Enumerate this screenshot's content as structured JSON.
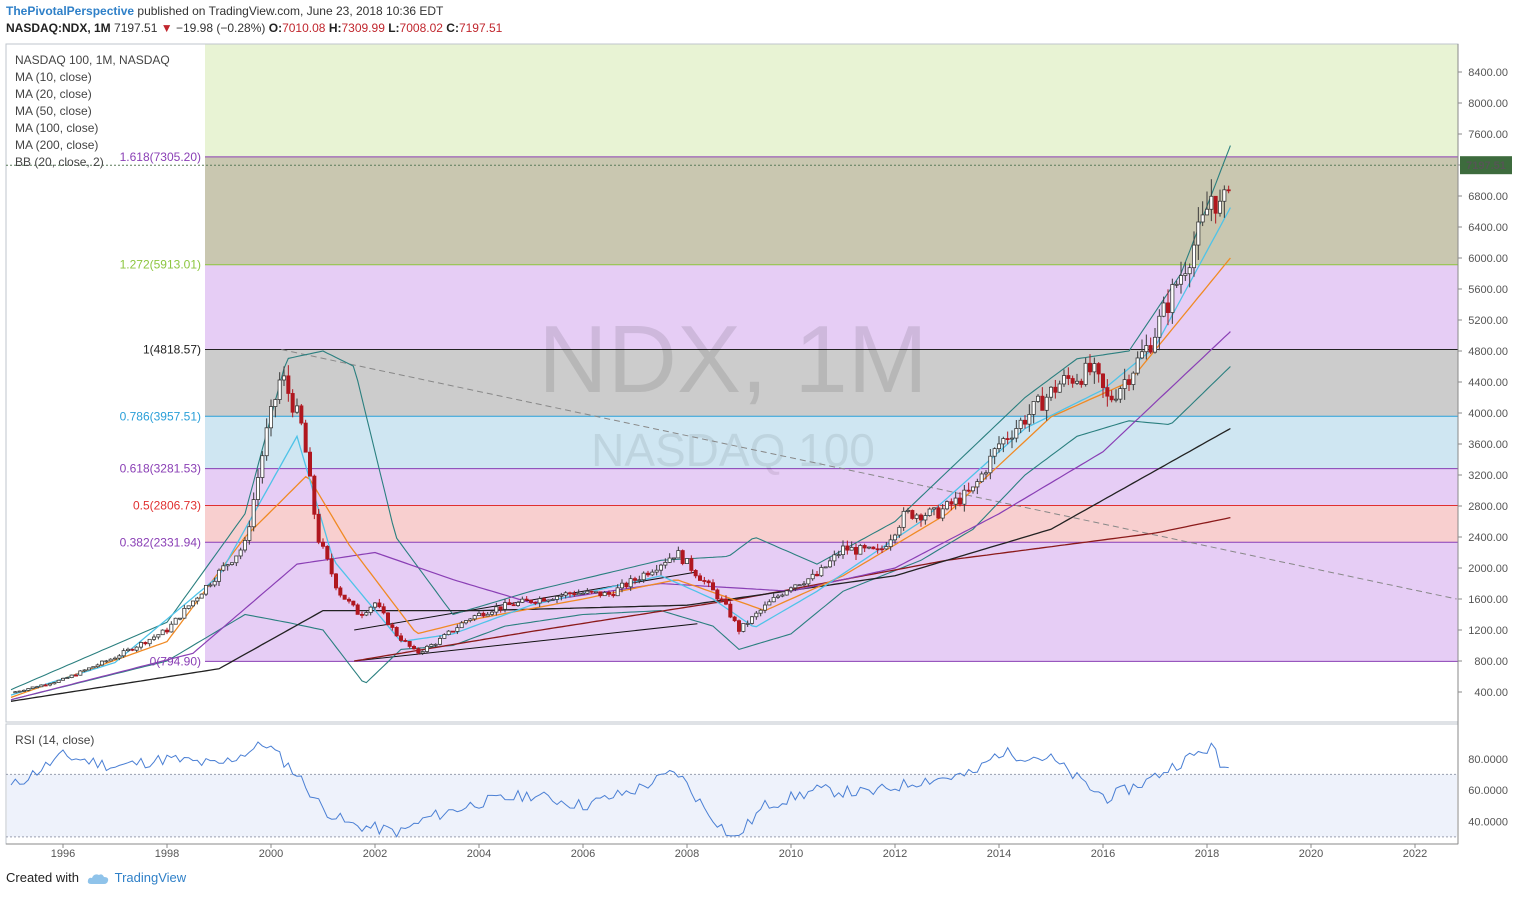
{
  "header": {
    "author": "ThePivotalPerspective",
    "published": "published on TradingView.com, June 23, 2018 10:36 EDT",
    "symbol": "NASDAQ:NDX, 1M",
    "last": "7197.51",
    "arrow": "▼",
    "change": "−19.98 (−0.28%)",
    "o_label": "O:",
    "o_val": "7010.08",
    "h_label": "H:",
    "h_val": "7309.99",
    "l_label": "L:",
    "l_val": "7008.02",
    "c_label": "C:",
    "c_val": "7197.51"
  },
  "legend": {
    "title": "NASDAQ 100, 1M, NASDAQ",
    "items": [
      "MA (10, close)",
      "MA (20, close)",
      "MA (50, close)",
      "MA (100, close)",
      "MA (200, close)",
      "BB (20, close, 2)"
    ]
  },
  "rsi_legend": "RSI (14, close)",
  "watermark": {
    "main": "NDX, 1M",
    "sub": "NASDAQ 100"
  },
  "price_badge": "7197.51",
  "footer": {
    "created_with": "Created with",
    "brand": "TradingView"
  },
  "colors": {
    "ma10": "#4fc3e8",
    "ma20": "#f08a24",
    "ma50": "#8a3fb5",
    "ma100": "#222222",
    "ma200": "#8b1a1a",
    "bb": "#2a7f7f",
    "rsi": "#4a7fd4",
    "up": "#3a3a3a",
    "down": "#b0171f"
  },
  "chart_data": {
    "type": "candlestick",
    "title": "NASDAQ 100, 1M, NASDAQ",
    "x_ticks": [
      "1996",
      "1998",
      "2000",
      "2002",
      "2004",
      "2006",
      "2008",
      "2010",
      "2012",
      "2014",
      "2016",
      "2018",
      "2020",
      "2022"
    ],
    "y_ticks": [
      "400.00",
      "800.00",
      "1200.00",
      "1600.00",
      "2000.00",
      "2400.00",
      "2800.00",
      "3200.00",
      "3600.00",
      "4000.00",
      "4400.00",
      "4800.00",
      "5200.00",
      "5600.00",
      "6000.00",
      "6400.00",
      "6800.00",
      "7200.00",
      "7600.00",
      "8000.00",
      "8400.00"
    ],
    "fib_levels": [
      {
        "label": "1.618(7305.20)",
        "ratio": 1.618,
        "value": 7305.2,
        "color": "#8a3fb5",
        "fill": "#c9c7b0"
      },
      {
        "label": "1.272(5913.01)",
        "ratio": 1.272,
        "value": 5913.01,
        "color": "#8dc63f",
        "fill": "#e6cdf5"
      },
      {
        "label": "1(4818.57)",
        "ratio": 1.0,
        "value": 4818.57,
        "color": "#222222",
        "fill": "#cccccc"
      },
      {
        "label": "0.786(3957.51)",
        "ratio": 0.786,
        "value": 3957.51,
        "color": "#2a9fd8",
        "fill": "#cfe6f2"
      },
      {
        "label": "0.618(3281.53)",
        "ratio": 0.618,
        "value": 3281.53,
        "color": "#8a3fb5",
        "fill": "#e6cdf5"
      },
      {
        "label": "0.5(2806.73)",
        "ratio": 0.5,
        "value": 2806.73,
        "color": "#e03030",
        "fill": "#f8cfcf"
      },
      {
        "label": "0.382(2331.94)",
        "ratio": 0.382,
        "value": 2331.94,
        "color": "#8a3fb5",
        "fill": "#e6cdf5"
      },
      {
        "label": "0(794.90)",
        "ratio": 0.0,
        "value": 794.9,
        "color": "#8a3fb5",
        "fill": "#e6cdf5"
      }
    ],
    "extension_top_fill": "#e8f3d4",
    "close_path": [
      [
        1995.0,
        390
      ],
      [
        1996.0,
        560
      ],
      [
        1997.0,
        850
      ],
      [
        1998.0,
        1200
      ],
      [
        1998.8,
        1800
      ],
      [
        1999.5,
        2300
      ],
      [
        1999.9,
        3700
      ],
      [
        2000.2,
        4500
      ],
      [
        2000.6,
        3800
      ],
      [
        2000.9,
        2400
      ],
      [
        2001.3,
        1700
      ],
      [
        2001.7,
        1400
      ],
      [
        2002.0,
        1550
      ],
      [
        2002.4,
        1150
      ],
      [
        2002.8,
        900
      ],
      [
        2003.2,
        1050
      ],
      [
        2003.8,
        1350
      ],
      [
        2004.3,
        1480
      ],
      [
        2005.0,
        1580
      ],
      [
        2005.8,
        1680
      ],
      [
        2006.5,
        1660
      ],
      [
        2007.0,
        1850
      ],
      [
        2007.8,
        2200
      ],
      [
        2008.3,
        1850
      ],
      [
        2008.7,
        1550
      ],
      [
        2009.0,
        1200
      ],
      [
        2009.5,
        1500
      ],
      [
        2010.0,
        1780
      ],
      [
        2010.5,
        1900
      ],
      [
        2011.0,
        2250
      ],
      [
        2011.7,
        2200
      ],
      [
        2012.2,
        2700
      ],
      [
        2012.8,
        2700
      ],
      [
        2013.5,
        3000
      ],
      [
        2014.0,
        3600
      ],
      [
        2014.6,
        4000
      ],
      [
        2015.2,
        4400
      ],
      [
        2015.8,
        4550
      ],
      [
        2016.1,
        4150
      ],
      [
        2016.5,
        4500
      ],
      [
        2016.9,
        4900
      ],
      [
        2017.3,
        5500
      ],
      [
        2017.9,
        6400
      ],
      [
        2018.1,
        6850
      ],
      [
        2018.3,
        6550
      ],
      [
        2018.45,
        7197
      ]
    ],
    "ma10_path": [
      [
        1995.0,
        360
      ],
      [
        1997.0,
        780
      ],
      [
        1999.0,
        1900
      ],
      [
        2000.5,
        3700
      ],
      [
        2001.2,
        2100
      ],
      [
        2002.5,
        1050
      ],
      [
        2003.5,
        1150
      ],
      [
        2005.0,
        1520
      ],
      [
        2007.5,
        1900
      ],
      [
        2008.5,
        1600
      ],
      [
        2009.3,
        1230
      ],
      [
        2010.5,
        1700
      ],
      [
        2012.5,
        2600
      ],
      [
        2014.5,
        3800
      ],
      [
        2016.0,
        4300
      ],
      [
        2017.0,
        4850
      ],
      [
        2018.45,
        6650
      ]
    ],
    "ma20_path": [
      [
        1995.0,
        330
      ],
      [
        1998.0,
        1050
      ],
      [
        1999.5,
        2400
      ],
      [
        2000.7,
        3200
      ],
      [
        2001.5,
        2300
      ],
      [
        2002.8,
        1150
      ],
      [
        2004.0,
        1350
      ],
      [
        2006.0,
        1600
      ],
      [
        2007.8,
        1850
      ],
      [
        2009.5,
        1450
      ],
      [
        2011.0,
        1900
      ],
      [
        2013.0,
        2700
      ],
      [
        2015.0,
        3950
      ],
      [
        2016.5,
        4400
      ],
      [
        2018.45,
        6000
      ]
    ],
    "ma50_path": [
      [
        1995.0,
        300
      ],
      [
        1998.5,
        900
      ],
      [
        2000.5,
        2050
      ],
      [
        2002.0,
        2200
      ],
      [
        2003.5,
        1850
      ],
      [
        2005.0,
        1550
      ],
      [
        2007.5,
        1800
      ],
      [
        2010.0,
        1700
      ],
      [
        2012.0,
        2000
      ],
      [
        2014.0,
        2700
      ],
      [
        2016.0,
        3500
      ],
      [
        2018.45,
        5050
      ]
    ],
    "ma100_path": [
      [
        1995.0,
        280
      ],
      [
        1999.0,
        700
      ],
      [
        2001.0,
        1450
      ],
      [
        2004.0,
        1450
      ],
      [
        2008.0,
        1520
      ],
      [
        2012.0,
        1900
      ],
      [
        2015.0,
        2500
      ],
      [
        2018.45,
        3800
      ]
    ],
    "ma200_path": [
      [
        2001.6,
        800
      ],
      [
        2005.0,
        1180
      ],
      [
        2009.0,
        1600
      ],
      [
        2013.0,
        2100
      ],
      [
        2017.0,
        2450
      ],
      [
        2018.45,
        2650
      ]
    ],
    "bb_upper_path": [
      [
        1995.0,
        430
      ],
      [
        1998.0,
        1300
      ],
      [
        1999.5,
        2700
      ],
      [
        2000.3,
        4700
      ],
      [
        2001.0,
        4800
      ],
      [
        2001.6,
        4600
      ],
      [
        2002.4,
        2400
      ],
      [
        2003.5,
        1400
      ],
      [
        2005.0,
        1700
      ],
      [
        2007.5,
        2100
      ],
      [
        2008.8,
        2150
      ],
      [
        2009.3,
        2400
      ],
      [
        2010.5,
        2050
      ],
      [
        2012.0,
        2600
      ],
      [
        2014.5,
        4200
      ],
      [
        2015.5,
        4700
      ],
      [
        2016.5,
        4800
      ],
      [
        2017.5,
        5800
      ],
      [
        2018.45,
        7450
      ]
    ],
    "bb_lower_path": [
      [
        1995.0,
        300
      ],
      [
        1998.0,
        800
      ],
      [
        1999.5,
        1400
      ],
      [
        2000.3,
        1300
      ],
      [
        2001.0,
        1200
      ],
      [
        2001.8,
        500
      ],
      [
        2002.5,
        950
      ],
      [
        2003.5,
        1000
      ],
      [
        2004.5,
        1250
      ],
      [
        2006.0,
        1400
      ],
      [
        2007.5,
        1450
      ],
      [
        2008.5,
        1250
      ],
      [
        2009.0,
        950
      ],
      [
        2010.0,
        1150
      ],
      [
        2011.0,
        1700
      ],
      [
        2012.5,
        2100
      ],
      [
        2013.5,
        2500
      ],
      [
        2014.5,
        3200
      ],
      [
        2015.5,
        3700
      ],
      [
        2016.5,
        3900
      ],
      [
        2017.3,
        3850
      ],
      [
        2018.45,
        4600
      ]
    ],
    "rsi_ticks": [
      "40.0000",
      "60.0000",
      "80.0000"
    ],
    "rsi_bands": [
      30,
      70
    ],
    "rsi_path": [
      [
        1995.0,
        62
      ],
      [
        1996.0,
        82
      ],
      [
        1997.0,
        75
      ],
      [
        1998.0,
        80
      ],
      [
        1999.0,
        76
      ],
      [
        1999.9,
        90
      ],
      [
        2000.5,
        70
      ],
      [
        2001.0,
        48
      ],
      [
        2001.5,
        38
      ],
      [
        2002.5,
        33
      ],
      [
        2003.0,
        42
      ],
      [
        2004.0,
        52
      ],
      [
        2005.0,
        57
      ],
      [
        2006.0,
        50
      ],
      [
        2007.0,
        60
      ],
      [
        2007.8,
        72
      ],
      [
        2008.3,
        50
      ],
      [
        2008.9,
        28
      ],
      [
        2009.5,
        50
      ],
      [
        2010.5,
        60
      ],
      [
        2011.5,
        58
      ],
      [
        2012.5,
        66
      ],
      [
        2013.5,
        70
      ],
      [
        2014.0,
        84
      ],
      [
        2015.0,
        80
      ],
      [
        2015.8,
        60
      ],
      [
        2016.1,
        55
      ],
      [
        2016.8,
        65
      ],
      [
        2017.5,
        78
      ],
      [
        2018.1,
        88
      ],
      [
        2018.3,
        72
      ],
      [
        2018.45,
        80
      ]
    ],
    "trendline": {
      "from": [
        2000.2,
        4818.57
      ],
      "to": [
        2022.8,
        1600
      ],
      "style": "dashed"
    },
    "channel": {
      "upper": [
        [
          2001.6,
          1200
        ],
        [
          2008.2,
          1950
        ]
      ],
      "lower": [
        [
          2001.6,
          800
        ],
        [
          2008.2,
          1280
        ]
      ]
    }
  }
}
